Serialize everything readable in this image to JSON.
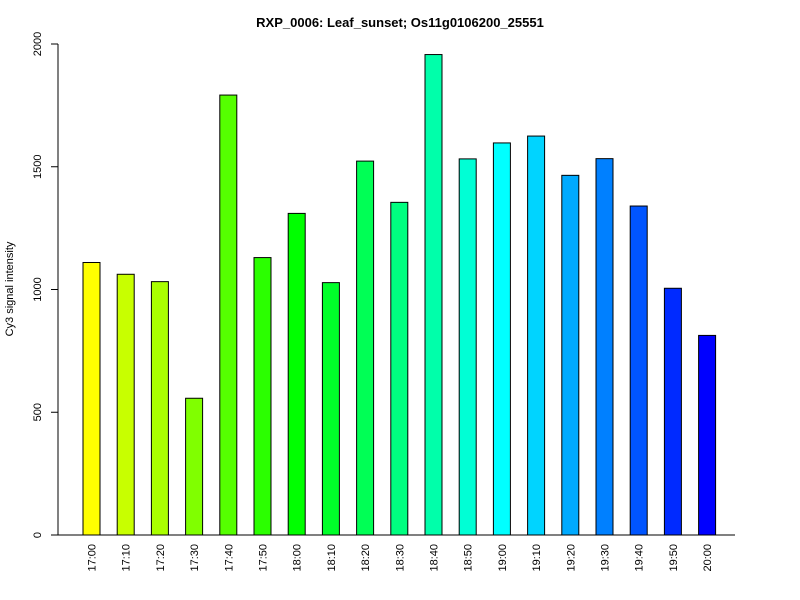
{
  "chart_data": {
    "type": "bar",
    "title": "RXP_0006: Leaf_sunset; Os11g0106200_25551",
    "xlabel": "",
    "ylabel": "Cy3 signal intensity",
    "ylim": [
      0,
      2000
    ],
    "yticks": [
      0,
      500,
      1000,
      1500,
      2000
    ],
    "grid": false,
    "categories": [
      "17:00",
      "17:10",
      "17:20",
      "17:30",
      "17:40",
      "17:50",
      "18:00",
      "18:10",
      "18:20",
      "18:30",
      "18:40",
      "18:50",
      "19:00",
      "19:10",
      "19:20",
      "19:30",
      "19:40",
      "19:50",
      "20:00"
    ],
    "values": [
      1110,
      1062,
      1032,
      557,
      1792,
      1130,
      1310,
      1028,
      1523,
      1355,
      1957,
      1532,
      1597,
      1625,
      1465,
      1533,
      1340,
      1005,
      813
    ],
    "colors": [
      "#ffff00",
      "#c8ff00",
      "#aaff00",
      "#80ff00",
      "#55ff00",
      "#2bff00",
      "#00ff00",
      "#00ff2a",
      "#00ff55",
      "#00ff80",
      "#00ffaa",
      "#00ffd5",
      "#00ffff",
      "#00d4ff",
      "#00aaff",
      "#0080ff",
      "#0055ff",
      "#002aff",
      "#0000ff"
    ]
  }
}
